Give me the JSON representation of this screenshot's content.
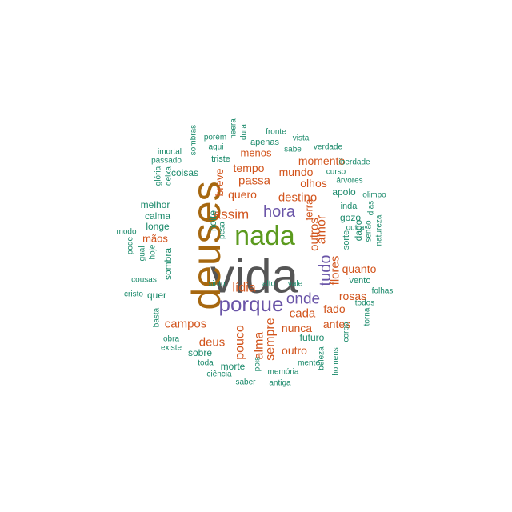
{
  "colors": {
    "dark_gray": "#555555",
    "brown": "#A6670F",
    "green": "#5B9A1E",
    "purple": "#6A55A8",
    "orange": "#D2541C",
    "teal": "#1B8A6B"
  },
  "words": [
    {
      "text": "vida",
      "size": 60,
      "color": "dark_gray",
      "weight": 230
    },
    {
      "text": "deuses",
      "size": 50,
      "color": "brown",
      "weight": 190
    },
    {
      "text": "nada",
      "size": 34,
      "color": "green",
      "weight": 120
    },
    {
      "text": "porque",
      "size": 26,
      "color": "purple",
      "weight": 95
    },
    {
      "text": "hora",
      "size": 20,
      "color": "purple",
      "weight": 70
    },
    {
      "text": "onde",
      "size": 19,
      "color": "purple",
      "weight": 68
    },
    {
      "text": "tudo",
      "size": 20,
      "color": "purple",
      "weight": 70
    },
    {
      "text": "assim",
      "size": 17,
      "color": "orange",
      "weight": 55
    },
    {
      "text": "lídia",
      "size": 16,
      "color": "orange",
      "weight": 50
    },
    {
      "text": "destino",
      "size": 15,
      "color": "orange",
      "weight": 45
    },
    {
      "text": "amor",
      "size": 16,
      "color": "orange",
      "weight": 45
    },
    {
      "text": "outros",
      "size": 15,
      "color": "orange",
      "weight": 44
    },
    {
      "text": "flores",
      "size": 15,
      "color": "orange",
      "weight": 43
    },
    {
      "text": "quanto",
      "size": 14,
      "color": "orange",
      "weight": 40
    },
    {
      "text": "rosas",
      "size": 14,
      "color": "orange",
      "weight": 40
    },
    {
      "text": "cada",
      "size": 15,
      "color": "orange",
      "weight": 42
    },
    {
      "text": "fado",
      "size": 14,
      "color": "orange",
      "weight": 40
    },
    {
      "text": "antes",
      "size": 14,
      "color": "orange",
      "weight": 39
    },
    {
      "text": "nunca",
      "size": 14,
      "color": "orange",
      "weight": 39
    },
    {
      "text": "outro",
      "size": 14,
      "color": "orange",
      "weight": 39
    },
    {
      "text": "alma",
      "size": 16,
      "color": "orange",
      "weight": 45
    },
    {
      "text": "sempre",
      "size": 16,
      "color": "orange",
      "weight": 45
    },
    {
      "text": "pouco",
      "size": 16,
      "color": "orange",
      "weight": 45
    },
    {
      "text": "deus",
      "size": 15,
      "color": "orange",
      "weight": 42
    },
    {
      "text": "campos",
      "size": 15,
      "color": "orange",
      "weight": 42
    },
    {
      "text": "mãos",
      "size": 13,
      "color": "orange",
      "weight": 36
    },
    {
      "text": "breve",
      "size": 14,
      "color": "orange",
      "weight": 38
    },
    {
      "text": "quero",
      "size": 14,
      "color": "orange",
      "weight": 39
    },
    {
      "text": "passa",
      "size": 15,
      "color": "orange",
      "weight": 42
    },
    {
      "text": "tempo",
      "size": 14,
      "color": "orange",
      "weight": 40
    },
    {
      "text": "mundo",
      "size": 14,
      "color": "orange",
      "weight": 40
    },
    {
      "text": "olhos",
      "size": 14,
      "color": "orange",
      "weight": 40
    },
    {
      "text": "momento",
      "size": 14,
      "color": "orange",
      "weight": 40
    },
    {
      "text": "menos",
      "size": 13,
      "color": "orange",
      "weight": 36
    },
    {
      "text": "terra",
      "size": 13,
      "color": "orange",
      "weight": 36
    },
    {
      "text": "coisas",
      "size": 12,
      "color": "teal",
      "weight": 30
    },
    {
      "text": "melhor",
      "size": 12,
      "color": "teal",
      "weight": 30
    },
    {
      "text": "calma",
      "size": 12,
      "color": "teal",
      "weight": 30
    },
    {
      "text": "longe",
      "size": 12,
      "color": "teal",
      "weight": 30
    },
    {
      "text": "noite",
      "size": 12,
      "color": "teal",
      "weight": 30
    },
    {
      "text": "sombra",
      "size": 12,
      "color": "teal",
      "weight": 30
    },
    {
      "text": "quer",
      "size": 12,
      "color": "teal",
      "weight": 30
    },
    {
      "text": "sobre",
      "size": 12,
      "color": "teal",
      "weight": 30
    },
    {
      "text": "morte",
      "size": 12,
      "color": "teal",
      "weight": 30
    },
    {
      "text": "futuro",
      "size": 12,
      "color": "teal",
      "weight": 30
    },
    {
      "text": "apolo",
      "size": 12,
      "color": "teal",
      "weight": 30
    },
    {
      "text": "gozo",
      "size": 12,
      "color": "teal",
      "weight": 30
    },
    {
      "text": "dado",
      "size": 12,
      "color": "teal",
      "weight": 30
    },
    {
      "text": "sorte",
      "size": 11,
      "color": "teal",
      "weight": 28
    },
    {
      "text": "vento",
      "size": 11,
      "color": "teal",
      "weight": 28
    },
    {
      "text": "triste",
      "size": 11,
      "color": "teal",
      "weight": 28
    },
    {
      "text": "aqui",
      "size": 10,
      "color": "teal",
      "weight": 24
    },
    {
      "text": "apenas",
      "size": 11,
      "color": "teal",
      "weight": 27
    },
    {
      "text": "sinto",
      "size": 10,
      "color": "teal",
      "weight": 24
    },
    {
      "text": "alto",
      "size": 10,
      "color": "teal",
      "weight": 24
    },
    {
      "text": "vale",
      "size": 10,
      "color": "teal",
      "weight": 24
    },
    {
      "text": "inda",
      "size": 11,
      "color": "teal",
      "weight": 26
    },
    {
      "text": "outra",
      "size": 10,
      "color": "teal",
      "weight": 24
    },
    {
      "text": "curso",
      "size": 10,
      "color": "teal",
      "weight": 24
    },
    {
      "text": "árvores",
      "size": 10,
      "color": "teal",
      "weight": 24
    },
    {
      "text": "liberdade",
      "size": 10,
      "color": "teal",
      "weight": 24
    },
    {
      "text": "verdade",
      "size": 10,
      "color": "teal",
      "weight": 24
    },
    {
      "text": "sabe",
      "size": 10,
      "color": "teal",
      "weight": 24
    },
    {
      "text": "vista",
      "size": 10,
      "color": "teal",
      "weight": 24
    },
    {
      "text": "fronte",
      "size": 10,
      "color": "teal",
      "weight": 24
    },
    {
      "text": "porém",
      "size": 10,
      "color": "teal",
      "weight": 24
    },
    {
      "text": "neera",
      "size": 10,
      "color": "teal",
      "weight": 24
    },
    {
      "text": "dura",
      "size": 10,
      "color": "teal",
      "weight": 24
    },
    {
      "text": "sombras",
      "size": 10,
      "color": "teal",
      "weight": 24
    },
    {
      "text": "imortal",
      "size": 10,
      "color": "teal",
      "weight": 24
    },
    {
      "text": "passado",
      "size": 10,
      "color": "teal",
      "weight": 24
    },
    {
      "text": "glória",
      "size": 10,
      "color": "teal",
      "weight": 24
    },
    {
      "text": "deixa",
      "size": 10,
      "color": "teal",
      "weight": 24
    },
    {
      "text": "olimpo",
      "size": 10,
      "color": "teal",
      "weight": 24
    },
    {
      "text": "dias",
      "size": 10,
      "color": "teal",
      "weight": 24
    },
    {
      "text": "senão",
      "size": 10,
      "color": "teal",
      "weight": 24
    },
    {
      "text": "natureza",
      "size": 10,
      "color": "teal",
      "weight": 24
    },
    {
      "text": "todos",
      "size": 10,
      "color": "teal",
      "weight": 24
    },
    {
      "text": "folhas",
      "size": 10,
      "color": "teal",
      "weight": 24
    },
    {
      "text": "torna",
      "size": 10,
      "color": "teal",
      "weight": 24
    },
    {
      "text": "modo",
      "size": 10,
      "color": "teal",
      "weight": 24
    },
    {
      "text": "pode",
      "size": 10,
      "color": "teal",
      "weight": 24
    },
    {
      "text": "igual",
      "size": 10,
      "color": "teal",
      "weight": 24
    },
    {
      "text": "hoje",
      "size": 10,
      "color": "teal",
      "weight": 24
    },
    {
      "text": "pesa",
      "size": 10,
      "color": "teal",
      "weight": 24
    },
    {
      "text": "cousas",
      "size": 10,
      "color": "teal",
      "weight": 24
    },
    {
      "text": "cristo",
      "size": 10,
      "color": "teal",
      "weight": 24
    },
    {
      "text": "basta",
      "size": 10,
      "color": "teal",
      "weight": 24
    },
    {
      "text": "obra",
      "size": 10,
      "color": "teal",
      "weight": 24
    },
    {
      "text": "existe",
      "size": 10,
      "color": "teal",
      "weight": 24
    },
    {
      "text": "toda",
      "size": 10,
      "color": "teal",
      "weight": 24
    },
    {
      "text": "ciência",
      "size": 10,
      "color": "teal",
      "weight": 24
    },
    {
      "text": "saber",
      "size": 10,
      "color": "teal",
      "weight": 24
    },
    {
      "text": "pois",
      "size": 10,
      "color": "teal",
      "weight": 24
    },
    {
      "text": "memória",
      "size": 10,
      "color": "teal",
      "weight": 24
    },
    {
      "text": "antiga",
      "size": 10,
      "color": "teal",
      "weight": 24
    },
    {
      "text": "mente",
      "size": 10,
      "color": "teal",
      "weight": 24
    },
    {
      "text": "beleza",
      "size": 10,
      "color": "teal",
      "weight": 24
    },
    {
      "text": "homens",
      "size": 10,
      "color": "teal",
      "weight": 24
    },
    {
      "text": "corpo",
      "size": 10,
      "color": "teal",
      "weight": 24
    }
  ]
}
